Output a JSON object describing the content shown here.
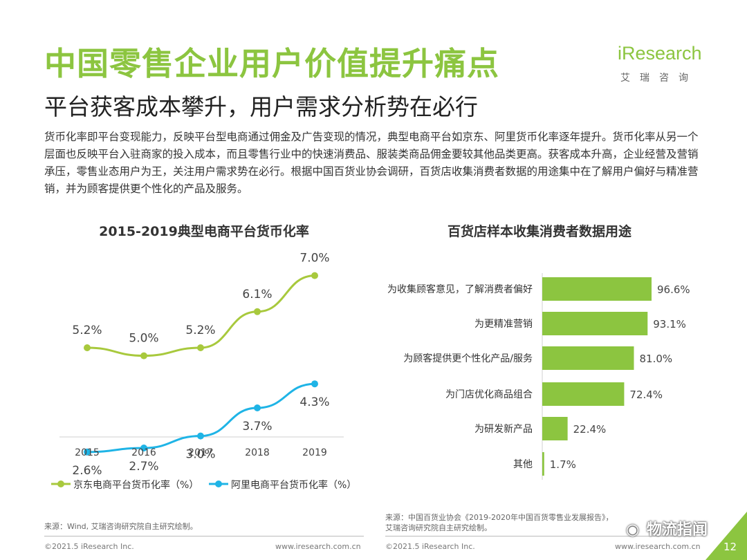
{
  "header": {
    "title": "中国零售企业用户价值提升痛点",
    "subtitle": "平台获客成本攀升，用户需求分析势在必行",
    "logo_word": "iResearch",
    "logo_cn": "艾瑞咨询"
  },
  "description": "货币化率即平台变现能力，反映平台型电商通过佣金及广告变现的情况，典型电商平台如京东、阿里货币化率逐年提升。货币化率从另一个层面也反映平台入驻商家的投入成本，而且零售行业中的快速消费品、服装类商品佣金要较其他品类更高。获客成本升高，企业经营及营销承压，零售业态用户为王，关注用户需求势在必行。根据中国百货业协会调研，百货店收集消费者数据的用途集中在了解用户偏好与精准营销，并为顾客提供更个性化的产品及服务。",
  "colors": {
    "accent": "#8cc540",
    "series_jd": "#a8c93d",
    "series_ali": "#1fb4e6",
    "bar": "#8cc540"
  },
  "chart_data": [
    {
      "type": "line",
      "title": "2015-2019典型电商平台货币化率",
      "x": [
        "2015",
        "2016",
        "2017",
        "2018",
        "2019"
      ],
      "series": [
        {
          "name": "京东电商平台货币化率（%）",
          "values": [
            5.2,
            5.0,
            5.2,
            6.1,
            7.0
          ],
          "labels": [
            "5.2%",
            "5.0%",
            "5.2%",
            "6.1%",
            "7.0%"
          ]
        },
        {
          "name": "阿里电商平台货币化率（%）",
          "values": [
            2.6,
            2.7,
            3.0,
            3.7,
            4.3
          ],
          "labels": [
            "2.6%",
            "2.7%",
            "3.0%",
            "3.7%",
            "4.3%"
          ]
        }
      ],
      "legend": "bottom"
    },
    {
      "type": "bar",
      "orientation": "horizontal",
      "title": "百货店样本收集消费者数据用途",
      "categories": [
        "为收集顾客意见，了解消费者偏好",
        "为更精准营销",
        "为顾客提供更个性化产品/服务",
        "为门店优化商品组合",
        "为研发新产品",
        "其他"
      ],
      "values": [
        96.6,
        93.1,
        81.0,
        72.4,
        22.4,
        1.7
      ],
      "labels": [
        "96.6%",
        "93.1%",
        "81.0%",
        "72.4%",
        "22.4%",
        "1.7%"
      ]
    }
  ],
  "sources": {
    "left": "来源：Wind, 艾瑞咨询研究院自主研究绘制。",
    "right": "来源：中国百货业协会《2019-2020年中国百货零售业发展报告》，艾瑞咨询研究院自主研究绘制。"
  },
  "footer": {
    "copyright": "©2021.5 iResearch Inc.",
    "website": "www.iresearch.com.cn",
    "page": "12",
    "watermark": "物流指闻"
  }
}
